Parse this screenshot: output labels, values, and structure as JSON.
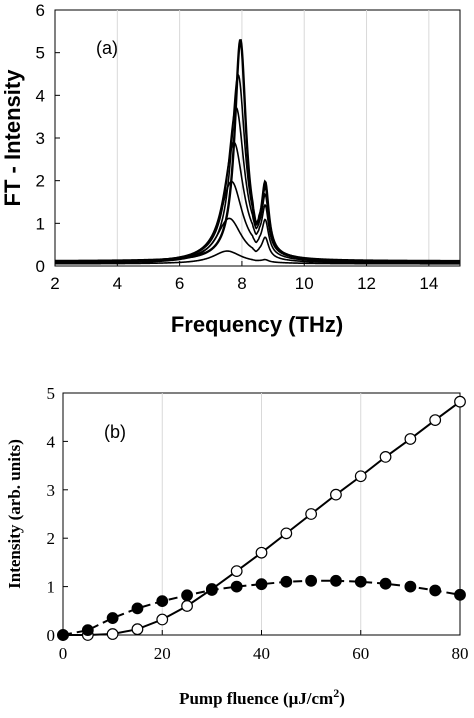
{
  "chart_data": [
    {
      "type": "line",
      "panel_label": "(a)",
      "xlabel": "Frequency  (THz)",
      "ylabel": "FT - Intensity",
      "xlim": [
        2,
        15
      ],
      "ylim": [
        0,
        6
      ],
      "xticks": [
        "2",
        "4",
        "6",
        "8",
        "10",
        "12",
        "14"
      ],
      "yticks": [
        "0",
        "1",
        "2",
        "3",
        "4",
        "5",
        "6"
      ],
      "grid": "vertical",
      "legend": "none",
      "series": [
        {
          "peak1_height": 0.3,
          "peak2_height": 0.05
        },
        {
          "peak1_height": 1.05,
          "peak2_height": 0.45
        },
        {
          "peak1_height": 1.9,
          "peak2_height": 0.75
        },
        {
          "peak1_height": 2.8,
          "peak2_height": 1.0
        },
        {
          "peak1_height": 3.6,
          "peak2_height": 1.2
        },
        {
          "peak1_height": 4.35,
          "peak2_height": 1.35
        },
        {
          "peak1_height": 5.15,
          "peak2_height": 1.5
        }
      ]
    },
    {
      "type": "line",
      "panel_label": "(b)",
      "xlabel": "Pump fluence (μJ/cm",
      "xlabel_sup": "2",
      "xlabel_end": ")",
      "ylabel": "Intensity (arb. units)",
      "xlim": [
        0,
        80
      ],
      "ylim": [
        0,
        5
      ],
      "xticks": [
        "0",
        "20",
        "40",
        "60",
        "80"
      ],
      "yticks": [
        "0",
        "1",
        "2",
        "3",
        "4",
        "5"
      ],
      "grid": "vertical",
      "legend": "none",
      "series": [
        {
          "marker": "open-circle",
          "line": "solid",
          "x": [
            0,
            5,
            10,
            15,
            20,
            25,
            30,
            35,
            40,
            45,
            50,
            55,
            60,
            65,
            70,
            75,
            80
          ],
          "y": [
            0.0,
            0.0,
            0.02,
            0.12,
            0.32,
            0.6,
            0.95,
            1.32,
            1.7,
            2.1,
            2.5,
            2.9,
            3.28,
            3.68,
            4.05,
            4.44,
            4.82
          ]
        },
        {
          "marker": "filled-circle",
          "line": "dashed",
          "x": [
            0,
            5,
            10,
            15,
            20,
            25,
            30,
            35,
            40,
            45,
            50,
            55,
            60,
            65,
            70,
            75,
            80
          ],
          "y": [
            0.0,
            0.1,
            0.35,
            0.55,
            0.7,
            0.82,
            0.93,
            1.0,
            1.05,
            1.1,
            1.12,
            1.12,
            1.1,
            1.06,
            1.0,
            0.92,
            0.83
          ]
        }
      ]
    }
  ]
}
